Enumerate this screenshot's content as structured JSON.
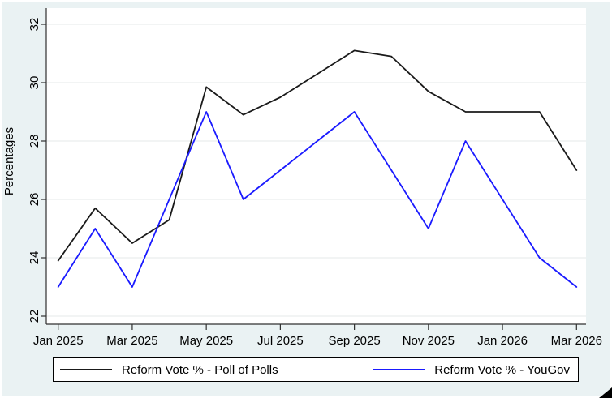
{
  "figure": {
    "title": "",
    "background_color": "#eaf2f3",
    "plot_background_color": "#ffffff",
    "gridline_color": "#e9eeee",
    "axis_color": "#303030",
    "text_color": "#000000"
  },
  "chart_data": {
    "type": "line",
    "title": "",
    "xlabel": "",
    "ylabel": "Percentages",
    "categories": [
      "Jan 2025",
      "Feb 2025",
      "Mar 2025",
      "Apr 2025",
      "May 2025",
      "Jun 2025",
      "Jul 2025",
      "Aug 2025",
      "Sep 2025",
      "Oct 2025",
      "Nov 2025",
      "Dec 2025",
      "Jan 2026",
      "Feb 2026",
      "Mar 2026"
    ],
    "x_tick_labels": [
      "Jan 2025",
      "Mar 2025",
      "May 2025",
      "Jul 2025",
      "Sep 2025",
      "Nov 2025",
      "Jan 2026",
      "Mar 2026"
    ],
    "x_tick_indices": [
      0,
      2,
      4,
      6,
      8,
      10,
      12,
      14
    ],
    "y_ticks": [
      22,
      24,
      26,
      28,
      30,
      32
    ],
    "ylim": [
      21.7,
      32.6
    ],
    "grid": true,
    "legend_position": "bottom",
    "series": [
      {
        "name": "Reform Vote % - Poll of Polls",
        "color": "#1a1a1a",
        "values": [
          23.9,
          25.7,
          24.5,
          25.3,
          29.85,
          28.9,
          29.5,
          30.3,
          31.1,
          30.9,
          29.7,
          29.0,
          29.0,
          29.0,
          27.0
        ]
      },
      {
        "name": "Reform Vote % - YouGov",
        "color": "#1a1aff",
        "values": [
          23,
          25,
          23,
          26,
          29,
          26,
          27,
          28,
          29,
          27,
          25,
          28,
          26,
          24,
          23
        ]
      }
    ]
  }
}
